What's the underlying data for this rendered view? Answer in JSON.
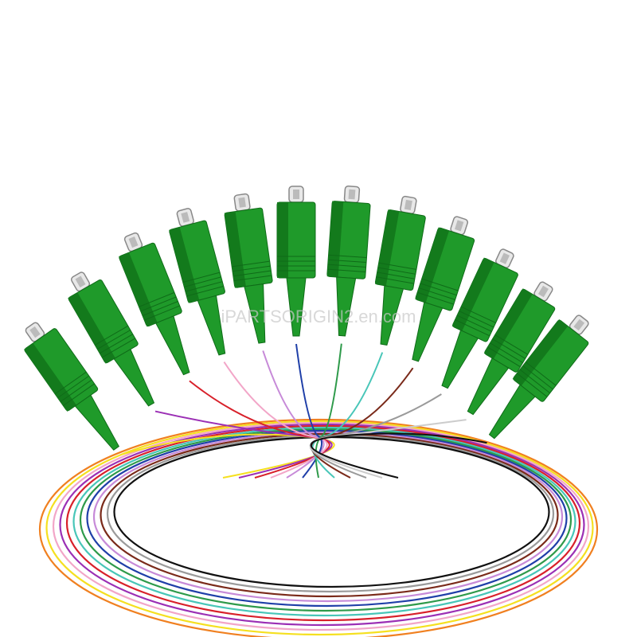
{
  "watermark": "iPARTSORIGIN2.en.com"
}
